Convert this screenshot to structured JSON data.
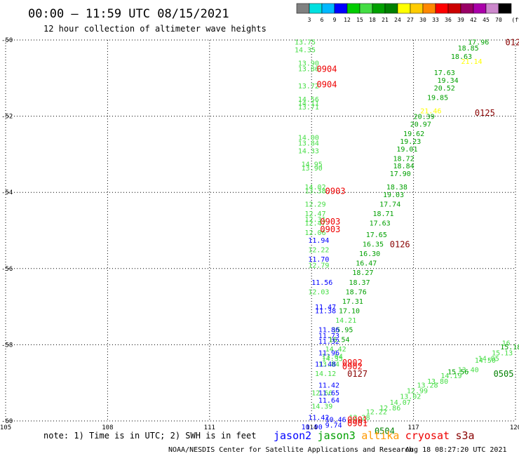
{
  "chart_data": {
    "type": "scatter",
    "title": "00:00 – 11:59 UTC 08/15/2021",
    "subtitle": "12 hour collection of altimeter wave heights",
    "x_ticks": [
      "105",
      "108",
      "111",
      "114",
      "117",
      "120"
    ],
    "y_ticks": [
      "-50",
      "-52",
      "-54",
      "-56",
      "-58",
      "-60"
    ],
    "xlim": [
      105,
      120
    ],
    "ylim": [
      -60,
      -50
    ],
    "grid": true,
    "colorbar": {
      "labels": [
        "3",
        "6",
        "9",
        "12",
        "15",
        "18",
        "21",
        "24",
        "27",
        "30",
        "33",
        "36",
        "39",
        "42",
        "45",
        "70",
        "(ft)"
      ],
      "colors": [
        "#808080",
        "#00e0e0",
        "#00b8ff",
        "#0000ff",
        "#00cc00",
        "#44dd44",
        "#00a000",
        "#008000",
        "#ffff00",
        "#ffcc00",
        "#ff8800",
        "#ff0000",
        "#cc0000",
        "#990066",
        "#aa00aa",
        "#cc88cc",
        "#000000"
      ]
    },
    "series": [
      {
        "name": "jason3",
        "points": [
          {
            "x": 113.5,
            "y": -50.05,
            "v": "13.75",
            "c": "#44dd44"
          },
          {
            "x": 113.5,
            "y": -50.25,
            "v": "14.35",
            "c": "#44dd44"
          },
          {
            "x": 113.6,
            "y": -50.6,
            "v": "13.90",
            "c": "#44dd44"
          },
          {
            "x": 113.6,
            "y": -50.75,
            "v": "13.86",
            "c": "#44dd44"
          },
          {
            "x": 113.6,
            "y": -51.2,
            "v": "13.72",
            "c": "#44dd44"
          },
          {
            "x": 113.6,
            "y": -51.55,
            "v": "14.56",
            "c": "#44dd44"
          },
          {
            "x": 113.6,
            "y": -51.65,
            "v": "14.11",
            "c": "#44dd44"
          },
          {
            "x": 113.6,
            "y": -51.75,
            "v": "13.71",
            "c": "#44dd44"
          },
          {
            "x": 113.6,
            "y": -52.55,
            "v": "14.00",
            "c": "#44dd44"
          },
          {
            "x": 113.6,
            "y": -52.7,
            "v": "13.84",
            "c": "#44dd44"
          },
          {
            "x": 113.6,
            "y": -52.9,
            "v": "14.33",
            "c": "#44dd44"
          },
          {
            "x": 113.7,
            "y": -53.25,
            "v": "14.95",
            "c": "#44dd44"
          },
          {
            "x": 113.7,
            "y": -53.35,
            "v": "13.90",
            "c": "#44dd44"
          },
          {
            "x": 113.8,
            "y": -53.85,
            "v": "14.02",
            "c": "#44dd44"
          },
          {
            "x": 113.8,
            "y": -53.95,
            "v": "13.38",
            "c": "#44dd44"
          },
          {
            "x": 113.8,
            "y": -54.3,
            "v": "12.29",
            "c": "#44dd44"
          },
          {
            "x": 113.8,
            "y": -54.55,
            "v": "12.47",
            "c": "#44dd44"
          },
          {
            "x": 113.8,
            "y": -54.7,
            "v": "12.31",
            "c": "#44dd44"
          },
          {
            "x": 113.8,
            "y": -54.8,
            "v": "12.47",
            "c": "#44dd44"
          },
          {
            "x": 113.8,
            "y": -55.05,
            "v": "12.06",
            "c": "#44dd44"
          },
          {
            "x": 113.9,
            "y": -55.5,
            "v": "12.22",
            "c": "#44dd44"
          },
          {
            "x": 113.9,
            "y": -55.9,
            "v": "12.79",
            "c": "#44dd44"
          },
          {
            "x": 113.9,
            "y": -56.6,
            "v": "12.03",
            "c": "#44dd44"
          },
          {
            "x": 114.3,
            "y": -58.3,
            "v": "13.64",
            "c": "#44dd44"
          },
          {
            "x": 114.2,
            "y": -58.5,
            "v": "13.84",
            "c": "#44dd44"
          },
          {
            "x": 114.1,
            "y": -58.75,
            "v": "14.12",
            "c": "#44dd44"
          },
          {
            "x": 114.0,
            "y": -59.25,
            "v": "12.66",
            "c": "#44dd44"
          },
          {
            "x": 114.0,
            "y": -59.6,
            "v": "14.39",
            "c": "#44dd44"
          },
          {
            "x": 115.1,
            "y": -59.9,
            "v": "12.28",
            "c": "#44dd44"
          },
          {
            "x": 115.6,
            "y": -59.75,
            "v": "12.22",
            "c": "#44dd44"
          },
          {
            "x": 116.0,
            "y": -59.65,
            "v": "12.86",
            "c": "#44dd44"
          },
          {
            "x": 116.3,
            "y": -59.5,
            "v": "14.07",
            "c": "#44dd44"
          },
          {
            "x": 116.6,
            "y": -59.35,
            "v": "13.02",
            "c": "#44dd44"
          },
          {
            "x": 116.8,
            "y": -59.2,
            "v": "12.99",
            "c": "#44dd44"
          },
          {
            "x": 117.1,
            "y": -59.05,
            "v": "13.28",
            "c": "#44dd44"
          },
          {
            "x": 117.4,
            "y": -58.95,
            "v": "13.80",
            "c": "#44dd44"
          },
          {
            "x": 117.8,
            "y": -58.8,
            "v": "14.19",
            "c": "#44dd44"
          },
          {
            "x": 118.3,
            "y": -58.65,
            "v": "13.40",
            "c": "#44dd44"
          },
          {
            "x": 118.8,
            "y": -58.4,
            "v": "14.50",
            "c": "#44dd44"
          },
          {
            "x": 119.3,
            "y": -58.2,
            "v": "15.13",
            "c": "#44dd44"
          },
          {
            "x": 119.6,
            "y": -57.95,
            "v": "16",
            "c": "#44dd44"
          },
          {
            "x": 119.55,
            "y": -58.05,
            "v": "15.18",
            "c": "#00a000"
          },
          {
            "x": 118.9,
            "y": -58.35,
            "v": "14.05",
            "c": "#44dd44"
          },
          {
            "x": 118.0,
            "y": -58.7,
            "v": "15.56",
            "c": "#00a000"
          }
        ]
      },
      {
        "name": "jason3-dark",
        "points": [
          {
            "x": 118.6,
            "y": -50.05,
            "v": "17.96",
            "c": "#00a000"
          },
          {
            "x": 118.3,
            "y": -50.2,
            "v": "18.85",
            "c": "#00a000"
          },
          {
            "x": 118.1,
            "y": -50.42,
            "v": "18.63",
            "c": "#00a000"
          },
          {
            "x": 117.6,
            "y": -50.85,
            "v": "17.63",
            "c": "#00a000"
          },
          {
            "x": 117.7,
            "y": -51.05,
            "v": "19.34",
            "c": "#00a000"
          },
          {
            "x": 117.6,
            "y": -51.25,
            "v": "20.52",
            "c": "#00a000"
          },
          {
            "x": 117.4,
            "y": -51.5,
            "v": "19.85",
            "c": "#00a000"
          },
          {
            "x": 117.0,
            "y": -52.0,
            "v": "20.39",
            "c": "#00a000"
          },
          {
            "x": 116.9,
            "y": -52.2,
            "v": "20.97",
            "c": "#00a000"
          },
          {
            "x": 116.7,
            "y": -52.45,
            "v": "19.62",
            "c": "#00a000"
          },
          {
            "x": 116.6,
            "y": -52.65,
            "v": "19.23",
            "c": "#00a000"
          },
          {
            "x": 116.5,
            "y": -52.85,
            "v": "19.01",
            "c": "#00a000"
          },
          {
            "x": 116.4,
            "y": -53.1,
            "v": "18.72",
            "c": "#00a000"
          },
          {
            "x": 116.4,
            "y": -53.3,
            "v": "18.84",
            "c": "#00a000"
          },
          {
            "x": 116.3,
            "y": -53.5,
            "v": "17.90",
            "c": "#00a000"
          },
          {
            "x": 116.2,
            "y": -53.85,
            "v": "18.38",
            "c": "#00a000"
          },
          {
            "x": 116.1,
            "y": -54.05,
            "v": "19.03",
            "c": "#00a000"
          },
          {
            "x": 116.0,
            "y": -54.3,
            "v": "17.74",
            "c": "#00a000"
          },
          {
            "x": 115.8,
            "y": -54.55,
            "v": "18.71",
            "c": "#00a000"
          },
          {
            "x": 115.7,
            "y": -54.8,
            "v": "17.63",
            "c": "#00a000"
          },
          {
            "x": 115.6,
            "y": -55.1,
            "v": "17.65",
            "c": "#00a000"
          },
          {
            "x": 115.5,
            "y": -55.35,
            "v": "16.35",
            "c": "#00a000"
          },
          {
            "x": 115.4,
            "y": -55.6,
            "v": "16.30",
            "c": "#00a000"
          },
          {
            "x": 115.3,
            "y": -55.85,
            "v": "16.47",
            "c": "#00a000"
          },
          {
            "x": 115.2,
            "y": -56.1,
            "v": "18.27",
            "c": "#00a000"
          },
          {
            "x": 115.1,
            "y": -56.35,
            "v": "18.37",
            "c": "#00a000"
          },
          {
            "x": 115.0,
            "y": -56.6,
            "v": "18.76",
            "c": "#00a000"
          },
          {
            "x": 114.9,
            "y": -56.85,
            "v": "17.31",
            "c": "#00a000"
          },
          {
            "x": 114.8,
            "y": -57.1,
            "v": "17.10",
            "c": "#00a000"
          },
          {
            "x": 114.7,
            "y": -57.35,
            "v": "14.21",
            "c": "#44dd44"
          },
          {
            "x": 114.6,
            "y": -57.6,
            "v": "15.95",
            "c": "#00a000"
          },
          {
            "x": 114.5,
            "y": -57.85,
            "v": "16.54",
            "c": "#00a000"
          },
          {
            "x": 114.4,
            "y": -58.1,
            "v": "14.42",
            "c": "#44dd44"
          },
          {
            "x": 114.3,
            "y": -58.35,
            "v": "14.35",
            "c": "#44dd44"
          }
        ]
      },
      {
        "name": "altika",
        "points": [
          {
            "x": 118.4,
            "y": -50.55,
            "v": "21.14",
            "c": "#ffff00"
          },
          {
            "x": 117.2,
            "y": -51.85,
            "v": "21.46",
            "c": "#ffff00"
          }
        ]
      },
      {
        "name": "jason2",
        "points": [
          {
            "x": 113.9,
            "y": -55.25,
            "v": "11.94",
            "c": "#0000ff"
          },
          {
            "x": 113.9,
            "y": -55.75,
            "v": "11.70",
            "c": "#0000ff"
          },
          {
            "x": 114.0,
            "y": -56.35,
            "v": "11.56",
            "c": "#0000ff"
          },
          {
            "x": 114.1,
            "y": -57.0,
            "v": "11.47",
            "c": "#0000ff"
          },
          {
            "x": 114.1,
            "y": -57.1,
            "v": "11.38",
            "c": "#0000ff"
          },
          {
            "x": 114.2,
            "y": -57.6,
            "v": "11.86",
            "c": "#0000ff"
          },
          {
            "x": 114.2,
            "y": -57.75,
            "v": "11.73",
            "c": "#0000ff"
          },
          {
            "x": 114.2,
            "y": -57.9,
            "v": "11.32",
            "c": "#0000ff"
          },
          {
            "x": 114.2,
            "y": -58.2,
            "v": "11.96",
            "c": "#0000ff"
          },
          {
            "x": 114.1,
            "y": -58.5,
            "v": "11.48",
            "c": "#0000ff"
          },
          {
            "x": 114.2,
            "y": -59.05,
            "v": "11.42",
            "c": "#0000ff"
          },
          {
            "x": 114.2,
            "y": -59.25,
            "v": "11.65",
            "c": "#0000ff"
          },
          {
            "x": 114.2,
            "y": -59.45,
            "v": "11.64",
            "c": "#0000ff"
          },
          {
            "x": 113.9,
            "y": -59.9,
            "v": "11.42",
            "c": "#0000ff"
          },
          {
            "x": 113.7,
            "y": -60.15,
            "v": "10.90",
            "c": "#0000ff"
          },
          {
            "x": 114.4,
            "y": -59.95,
            "v": "10.46",
            "c": "#0000ff"
          },
          {
            "x": 114.4,
            "y": -60.1,
            "v": "9.74",
            "c": "#0000ff"
          }
        ]
      }
    ],
    "pass_labels": [
      {
        "x": 120.0,
        "y": -50.05,
        "v": "0124",
        "c": "#880000"
      },
      {
        "x": 114.45,
        "y": -50.75,
        "v": "0904",
        "c": "#ee0000"
      },
      {
        "x": 114.45,
        "y": -51.15,
        "v": "0904",
        "c": "#ee0000"
      },
      {
        "x": 119.1,
        "y": -51.9,
        "v": "0125",
        "c": "#880000"
      },
      {
        "x": 114.7,
        "y": -53.95,
        "v": "0903",
        "c": "#ee0000"
      },
      {
        "x": 114.55,
        "y": -54.75,
        "v": "0903",
        "c": "#ee0000"
      },
      {
        "x": 114.55,
        "y": -54.95,
        "v": "0903",
        "c": "#ee0000"
      },
      {
        "x": 116.6,
        "y": -55.35,
        "v": "0126",
        "c": "#880000"
      },
      {
        "x": 115.2,
        "y": -58.45,
        "v": "0902",
        "c": "#ee0000"
      },
      {
        "x": 115.2,
        "y": -58.55,
        "v": "0902",
        "c": "#ee0000"
      },
      {
        "x": 115.35,
        "y": -58.75,
        "v": "0127",
        "c": "#880000"
      },
      {
        "x": 119.65,
        "y": -58.75,
        "v": "0505",
        "c": "#008000"
      },
      {
        "x": 115.35,
        "y": -59.95,
        "v": "0901",
        "c": "#ee0000"
      },
      {
        "x": 115.35,
        "y": -60.05,
        "v": "0901",
        "c": "#ee0000"
      },
      {
        "x": 116.15,
        "y": -60.25,
        "v": "0504",
        "c": "#008000"
      }
    ]
  },
  "footer": {
    "note": "note: 1) Time is in UTC; 2) SWH is in feet",
    "satellites": [
      {
        "name": "jason2",
        "color": "#0000ff"
      },
      {
        "name": "jason3",
        "color": "#00a000"
      },
      {
        "name": "altika",
        "color": "#ff9900"
      },
      {
        "name": "cryosat",
        "color": "#ee0000"
      },
      {
        "name": "s3a",
        "color": "#880000"
      }
    ],
    "credit": "NOAA/NESDIS Center for Satellite Applications and Research",
    "timestamp": "Aug 18 08:27:20 UTC 2021"
  }
}
